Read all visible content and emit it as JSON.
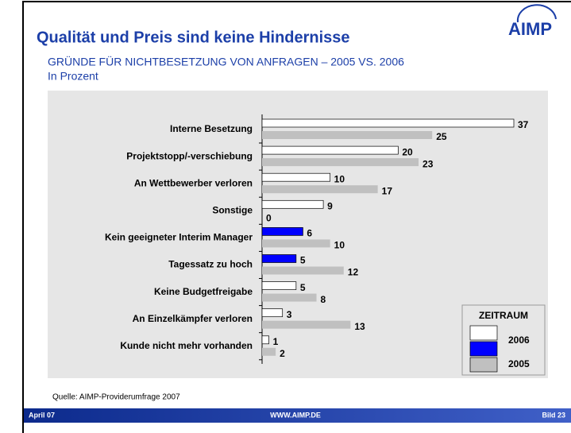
{
  "header": {
    "title": "Qualität und Preis sind keine Hindernisse",
    "subtitle": "GRÜNDE FÜR NICHTBESETZUNG VON ANFRAGEN – 2005 VS. 2006",
    "unit": "In Prozent"
  },
  "logo": "AIMP",
  "chart_data": {
    "type": "bar",
    "orientation": "horizontal",
    "categories": [
      "Interne Besetzung",
      "Projektstopp/-verschiebung",
      "An Wettbewerber verloren",
      "Sonstige",
      "Kein geeigneter Interim Manager",
      "Tagessatz zu hoch",
      "Keine Budgetfreigabe",
      "An Einzelkämpfer verloren",
      "Kunde nicht mehr vorhanden"
    ],
    "series": [
      {
        "name": "2006",
        "color": "#ffffff",
        "colors": [
          "#ffffff",
          "#ffffff",
          "#ffffff",
          "#ffffff",
          "#0000ff",
          "#0000ff",
          "#ffffff",
          "#ffffff",
          "#ffffff"
        ],
        "values": [
          37,
          20,
          10,
          9,
          6,
          5,
          5,
          3,
          1
        ]
      },
      {
        "name": "2005",
        "color": "#c0c0c0",
        "values": [
          25,
          23,
          17,
          0,
          10,
          12,
          8,
          13,
          2
        ]
      }
    ],
    "legend_title": "ZEITRAUM",
    "legend": "lower right"
  },
  "footer": {
    "source": "Quelle: AIMP-Providerumfrage 2007",
    "date": "April 07",
    "url": "WWW.AIMP.DE",
    "page": "Bild 23"
  }
}
